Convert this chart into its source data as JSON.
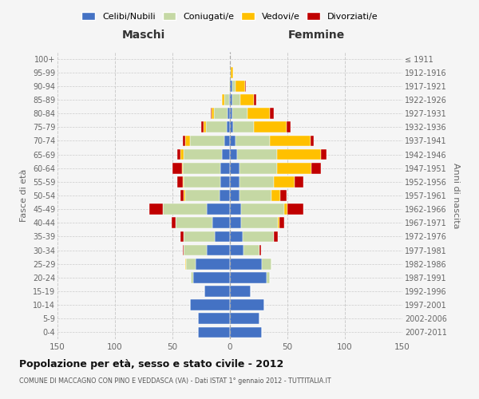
{
  "age_groups": [
    "0-4",
    "5-9",
    "10-14",
    "15-19",
    "20-24",
    "25-29",
    "30-34",
    "35-39",
    "40-44",
    "45-49",
    "50-54",
    "55-59",
    "60-64",
    "65-69",
    "70-74",
    "75-79",
    "80-84",
    "85-89",
    "90-94",
    "95-99",
    "100+"
  ],
  "birth_years": [
    "2007-2011",
    "2002-2006",
    "1997-2001",
    "1992-1996",
    "1987-1991",
    "1982-1986",
    "1977-1981",
    "1972-1976",
    "1967-1971",
    "1962-1966",
    "1957-1961",
    "1952-1956",
    "1947-1951",
    "1942-1946",
    "1937-1941",
    "1932-1936",
    "1927-1931",
    "1922-1926",
    "1917-1921",
    "1912-1916",
    "≤ 1911"
  ],
  "maschi": {
    "celibi": [
      28,
      28,
      35,
      22,
      32,
      30,
      20,
      13,
      15,
      20,
      9,
      8,
      8,
      7,
      5,
      3,
      2,
      1,
      0,
      0,
      0
    ],
    "coniugati": [
      0,
      0,
      0,
      0,
      2,
      8,
      20,
      27,
      32,
      38,
      30,
      32,
      33,
      33,
      30,
      18,
      12,
      4,
      1,
      0,
      0
    ],
    "vedovi": [
      0,
      0,
      0,
      0,
      0,
      1,
      0,
      0,
      0,
      0,
      1,
      1,
      1,
      3,
      4,
      2,
      2,
      2,
      0,
      0,
      0
    ],
    "divorziati": [
      0,
      0,
      0,
      0,
      0,
      0,
      1,
      3,
      4,
      12,
      3,
      5,
      8,
      3,
      2,
      2,
      1,
      0,
      0,
      0,
      0
    ]
  },
  "femmine": {
    "nubili": [
      28,
      26,
      30,
      18,
      32,
      28,
      12,
      11,
      10,
      10,
      8,
      8,
      8,
      6,
      5,
      3,
      2,
      2,
      2,
      0,
      0
    ],
    "coniugate": [
      0,
      0,
      0,
      0,
      3,
      8,
      14,
      27,
      32,
      37,
      28,
      30,
      33,
      35,
      30,
      18,
      13,
      7,
      3,
      1,
      0
    ],
    "vedove": [
      0,
      0,
      0,
      0,
      0,
      0,
      0,
      0,
      1,
      3,
      8,
      18,
      30,
      38,
      35,
      28,
      20,
      12,
      8,
      2,
      0
    ],
    "divorziate": [
      0,
      0,
      0,
      0,
      0,
      0,
      1,
      4,
      4,
      14,
      5,
      8,
      8,
      5,
      3,
      4,
      3,
      2,
      1,
      0,
      0
    ]
  },
  "colors": {
    "celibi": "#4472c4",
    "coniugati": "#c5d8a4",
    "vedovi": "#ffc000",
    "divorziati": "#c00000"
  },
  "title": "Popolazione per età, sesso e stato civile - 2012",
  "subtitle": "COMUNE DI MACCAGNO CON PINO E VEDDASCA (VA) - Dati ISTAT 1° gennaio 2012 - TUTTITALIA.IT",
  "xlabel_left": "Maschi",
  "xlabel_right": "Femmine",
  "ylabel_left": "Fasce di età",
  "ylabel_right": "Anni di nascita",
  "xlim": 150,
  "legend_labels": [
    "Celibi/Nubili",
    "Coniugati/e",
    "Vedovi/e",
    "Divorziati/e"
  ],
  "bg_color": "#f5f5f5",
  "grid_color": "#cccccc"
}
